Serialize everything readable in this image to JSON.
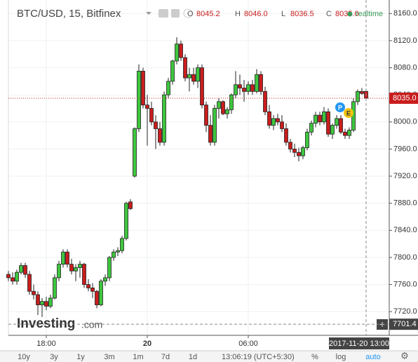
{
  "chart_data": {
    "type": "candlestick",
    "title": "BTC/USD, 15, Bitfinex",
    "ohlc_letters": [
      "O",
      "H",
      "L",
      "C"
    ],
    "last_labels": {
      "open": "8045.2",
      "high": "8046.0",
      "low": "8036.5",
      "close": "8035.0"
    },
    "realtime": "realtime",
    "up_color": "#3ec63e",
    "down_color": "#c91d1d",
    "open": [
      7775,
      7770,
      7765,
      7778,
      7788,
      7775,
      7750,
      7745,
      7730,
      7735,
      7728,
      7740,
      7770,
      7790,
      7808,
      7790,
      7780,
      7785,
      7790,
      7760,
      7755,
      7750,
      7730,
      7765,
      7770,
      7800,
      7808,
      7810,
      7828,
      7882,
      7920,
      7990,
      8075,
      8025,
      8020,
      8000,
      7990,
      7970,
      8040,
      8060,
      8090,
      8115,
      8095,
      8065,
      8070,
      8060,
      8080,
      8025,
      7995,
      7970,
      8020,
      8030,
      8012,
      8018,
      8040,
      8055,
      8050,
      8045,
      8055,
      8045,
      8070,
      8045,
      8015,
      7995,
      8005,
      8000,
      7990,
      7970,
      7960,
      7955,
      7950,
      7962,
      7985,
      7998,
      8010,
      8000,
      8015,
      7982,
      7995,
      8005,
      7985,
      7980,
      7988,
      8030,
      8045,
      8045.2
    ],
    "high": [
      7780,
      7778,
      7782,
      7792,
      7792,
      7780,
      7760,
      7750,
      7740,
      7742,
      7745,
      7775,
      7795,
      7812,
      7812,
      7798,
      7790,
      7795,
      7792,
      7768,
      7762,
      7752,
      7768,
      7775,
      7802,
      7812,
      7815,
      7832,
      7882,
      7886,
      7992,
      8085,
      8080,
      8040,
      8030,
      8010,
      8000,
      8045,
      8065,
      8092,
      8125,
      8120,
      8100,
      8080,
      8080,
      8085,
      8085,
      8030,
      8010,
      8025,
      8035,
      8032,
      8022,
      8042,
      8075,
      8070,
      8062,
      8060,
      8062,
      8078,
      8075,
      8052,
      8025,
      8010,
      8012,
      8010,
      7998,
      7975,
      7968,
      7962,
      7965,
      7990,
      8002,
      8015,
      8015,
      8022,
      8020,
      7998,
      8010,
      8010,
      7990,
      7992,
      8035,
      8048,
      8050,
      8046.0
    ],
    "low": [
      7765,
      7760,
      7760,
      7775,
      7770,
      7745,
      7738,
      7715,
      7712,
      7722,
      7725,
      7738,
      7765,
      7785,
      7785,
      7775,
      7765,
      7770,
      7755,
      7750,
      7740,
      7725,
      7728,
      7758,
      7765,
      7795,
      7802,
      7806,
      7825,
      7870,
      7918,
      7985,
      8020,
      7965,
      7995,
      7960,
      7965,
      7965,
      8035,
      8055,
      8085,
      8090,
      8060,
      8045,
      8055,
      8050,
      8020,
      7985,
      7965,
      7965,
      8005,
      8010,
      8005,
      8012,
      8035,
      8040,
      8030,
      8040,
      8040,
      8042,
      8040,
      8010,
      7990,
      7988,
      7995,
      7985,
      7965,
      7955,
      7948,
      7942,
      7945,
      7958,
      7980,
      7992,
      7995,
      7996,
      7978,
      7975,
      7990,
      7982,
      7975,
      7975,
      7985,
      8025,
      8040,
      8036.5
    ],
    "close": [
      7770,
      7765,
      7778,
      7788,
      7775,
      7750,
      7745,
      7730,
      7735,
      7728,
      7740,
      7770,
      7790,
      7808,
      7790,
      7780,
      7785,
      7790,
      7760,
      7755,
      7750,
      7730,
      7765,
      7770,
      7800,
      7808,
      7810,
      7828,
      7880,
      7872,
      7990,
      8075,
      8025,
      8020,
      8000,
      7990,
      7970,
      8040,
      8060,
      8090,
      8115,
      8095,
      8065,
      8070,
      8060,
      8080,
      8025,
      7995,
      7970,
      8020,
      8030,
      8012,
      8018,
      8040,
      8055,
      8050,
      8045,
      8055,
      8045,
      8070,
      8045,
      8015,
      7995,
      8005,
      8000,
      7990,
      7970,
      7960,
      7955,
      7950,
      7962,
      7985,
      7998,
      8010,
      8000,
      8015,
      7982,
      7995,
      8005,
      7985,
      7980,
      7988,
      8030,
      8045,
      8042,
      8035.0
    ],
    "ylim": [
      7685,
      8180
    ],
    "yticks": [
      {
        "value": 7720,
        "label": "7720.0"
      },
      {
        "value": 7760,
        "label": "7760.0"
      },
      {
        "value": 7800,
        "label": "7800.0"
      },
      {
        "value": 7840,
        "label": "7840.0"
      },
      {
        "value": 7880,
        "label": "7880.0"
      },
      {
        "value": 7920,
        "label": "7920.0"
      },
      {
        "value": 7960,
        "label": "7960.0"
      },
      {
        "value": 8000,
        "label": "8000.0"
      },
      {
        "value": 8040,
        "label": "8040.0"
      },
      {
        "value": 8080,
        "label": "8080.0"
      },
      {
        "value": 8120,
        "label": "8120.0"
      },
      {
        "value": 8160,
        "label": "8160.0"
      }
    ],
    "xlim": [
      0,
      90.5
    ],
    "xticks": [
      {
        "value": 9,
        "label": "18:00"
      },
      {
        "value": 33,
        "label": "20"
      },
      {
        "value": 57,
        "label": "06:00"
      }
    ],
    "grid": true,
    "crosshair": {
      "price": 7701.4,
      "time_label": "2017-11-20 13:00"
    },
    "events": [
      "P",
      "E"
    ],
    "logo": {
      "brand": "Investing",
      "suffix": ".com"
    },
    "ranges": [
      "10y",
      "3y",
      "1y",
      "3m",
      "1m",
      "7d",
      "1d"
    ],
    "clock": "13:06:19 (UTC+5:30)",
    "options": [
      "%",
      "log",
      "auto"
    ]
  }
}
